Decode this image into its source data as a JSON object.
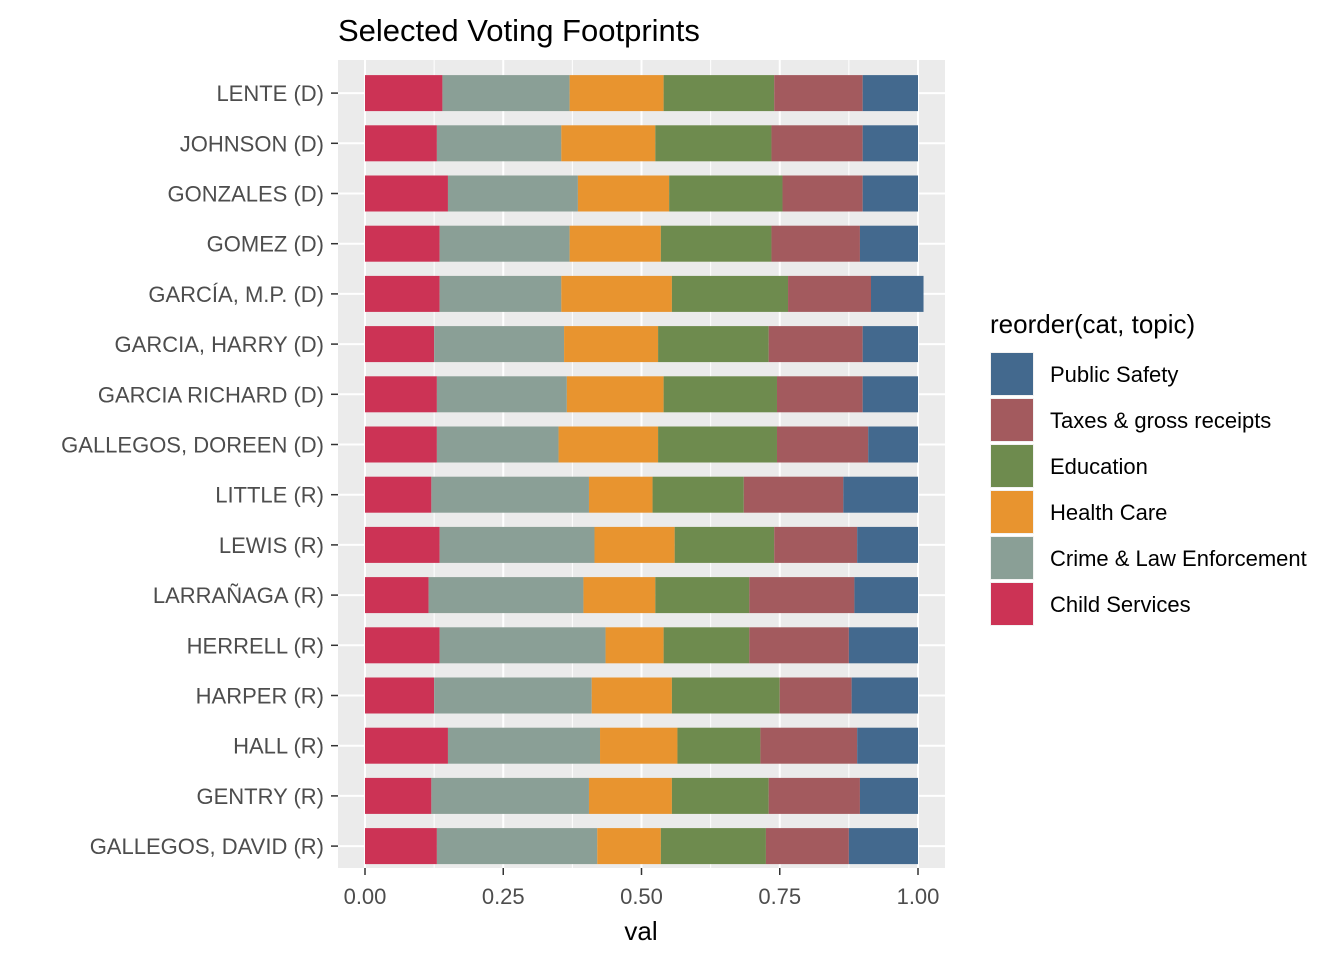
{
  "chart_data": {
    "type": "bar",
    "orientation": "horizontal",
    "stacked": true,
    "title": "Selected Voting Footprints",
    "xlabel": "val",
    "ylabel": "",
    "xlim": [
      0,
      1
    ],
    "x_ticks": [
      "0.00",
      "0.25",
      "0.50",
      "0.75",
      "1.00"
    ],
    "x_tick_values": [
      0,
      0.25,
      0.5,
      0.75,
      1.0
    ],
    "grid": true,
    "legend": {
      "title": "reorder(cat, topic)",
      "placement": "right",
      "entries": [
        "Public Safety",
        "Taxes & gross receipts",
        "Education",
        "Health Care",
        "Crime & Law Enforcement",
        "Child Services"
      ]
    },
    "categories": [
      "LENTE (D)",
      "JOHNSON (D)",
      "GONZALES (D)",
      "GOMEZ (D)",
      "GARCÍA, M.P. (D)",
      "GARCIA, HARRY (D)",
      "GARCIA RICHARD (D)",
      "GALLEGOS, DOREEN (D)",
      "LITTLE (R)",
      "LEWIS (R)",
      "LARRAÑAGA (R)",
      "HERRELL (R)",
      "HARPER (R)",
      "HALL (R)",
      "GENTRY (R)",
      "GALLEGOS, DAVID (R)"
    ],
    "stack_order": [
      "Child Services",
      "Crime & Law Enforcement",
      "Health Care",
      "Education",
      "Taxes & gross receipts",
      "Public Safety"
    ],
    "series": [
      {
        "name": "Child Services",
        "color": "#CC3355",
        "values": [
          0.14,
          0.13,
          0.15,
          0.135,
          0.135,
          0.125,
          0.13,
          0.13,
          0.12,
          0.135,
          0.115,
          0.135,
          0.125,
          0.15,
          0.12,
          0.13
        ]
      },
      {
        "name": "Crime & Law Enforcement",
        "color": "#8A9F96",
        "values": [
          0.23,
          0.225,
          0.235,
          0.235,
          0.22,
          0.235,
          0.235,
          0.22,
          0.285,
          0.28,
          0.28,
          0.3,
          0.285,
          0.275,
          0.285,
          0.29
        ]
      },
      {
        "name": "Health Care",
        "color": "#E8942F",
        "values": [
          0.17,
          0.17,
          0.165,
          0.165,
          0.2,
          0.17,
          0.175,
          0.18,
          0.115,
          0.145,
          0.13,
          0.105,
          0.145,
          0.14,
          0.15,
          0.115
        ]
      },
      {
        "name": "Education",
        "color": "#6E8B4E",
        "values": [
          0.2,
          0.21,
          0.205,
          0.2,
          0.21,
          0.2,
          0.205,
          0.215,
          0.165,
          0.18,
          0.17,
          0.155,
          0.195,
          0.15,
          0.175,
          0.19
        ]
      },
      {
        "name": "Taxes & gross receipts",
        "color": "#A35A5E",
        "values": [
          0.16,
          0.165,
          0.145,
          0.16,
          0.15,
          0.17,
          0.155,
          0.165,
          0.18,
          0.15,
          0.19,
          0.18,
          0.13,
          0.175,
          0.165,
          0.15
        ]
      },
      {
        "name": "Public Safety",
        "color": "#43698E",
        "values": [
          0.1,
          0.1,
          0.1,
          0.105,
          0.095,
          0.1,
          0.1,
          0.09,
          0.135,
          0.11,
          0.115,
          0.125,
          0.12,
          0.11,
          0.105,
          0.125
        ]
      }
    ]
  }
}
